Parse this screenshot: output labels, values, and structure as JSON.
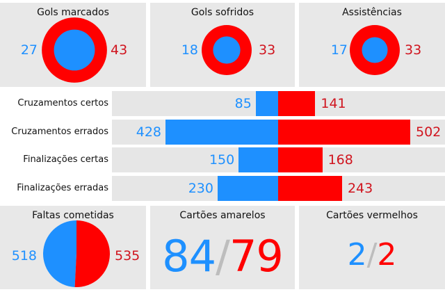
{
  "colors": {
    "blue": "#1e90ff",
    "red": "#ff0000",
    "label_red": "#d0141e",
    "panel": "#e8e8e8",
    "track": "#e6e6e6",
    "slash": "#bdbdbd"
  },
  "chart_data": [
    {
      "type": "nested-circle",
      "title": "Gols marcados",
      "series": [
        {
          "name": "blue",
          "value": 27
        },
        {
          "name": "red",
          "value": 43
        }
      ]
    },
    {
      "type": "nested-circle",
      "title": "Gols sofridos",
      "series": [
        {
          "name": "blue",
          "value": 18
        },
        {
          "name": "red",
          "value": 33
        }
      ]
    },
    {
      "type": "nested-circle",
      "title": "Assistências",
      "series": [
        {
          "name": "blue",
          "value": 17
        },
        {
          "name": "red",
          "value": 33
        }
      ]
    },
    {
      "type": "bar",
      "orientation": "horizontal-diverging",
      "categories": [
        "Cruzamentos certos",
        "Cruzamentos errados",
        "Finalizações certas",
        "Finalizações erradas"
      ],
      "series": [
        {
          "name": "blue",
          "values": [
            85,
            428,
            150,
            230
          ]
        },
        {
          "name": "red",
          "values": [
            141,
            502,
            168,
            243
          ]
        }
      ]
    },
    {
      "type": "pie",
      "title": "Faltas cometidas",
      "series": [
        {
          "name": "blue",
          "value": 518
        },
        {
          "name": "red",
          "value": 535
        }
      ]
    },
    {
      "type": "table",
      "title": "Cartões amarelos",
      "values": {
        "blue": 84,
        "red": 79
      },
      "separator": "/"
    },
    {
      "type": "table",
      "title": "Cartões vermelhos",
      "values": {
        "blue": 2,
        "red": 2
      },
      "separator": "/"
    }
  ]
}
